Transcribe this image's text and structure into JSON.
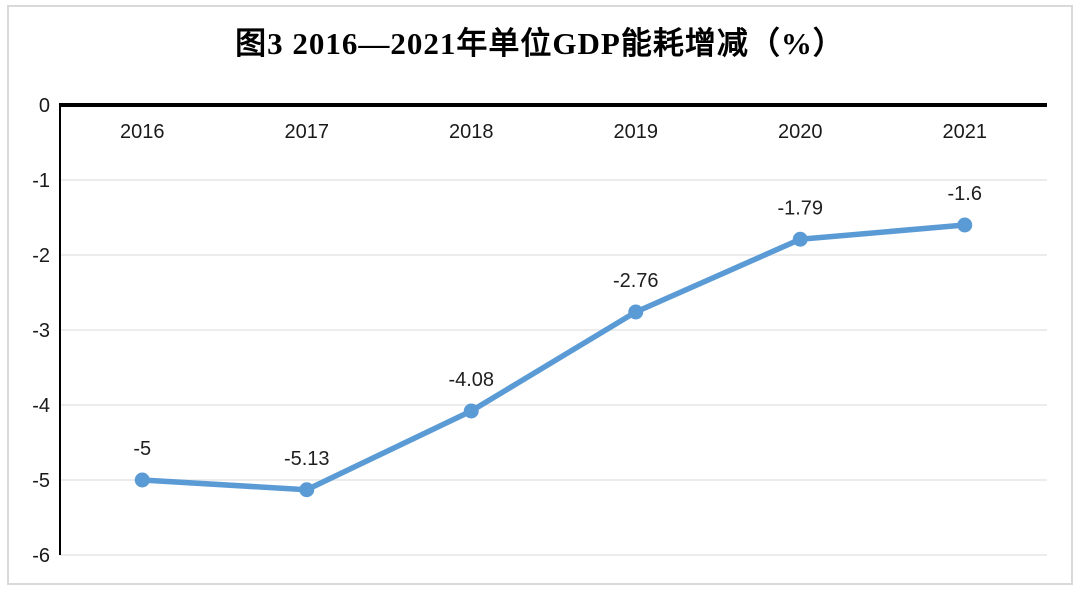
{
  "page": {
    "title": "图3 2016—2021年单位GDP能耗增减（%）"
  },
  "chart_data": {
    "type": "line",
    "title": "图3 2016—2021年单位GDP能耗增减（%）",
    "categories": [
      "2016",
      "2017",
      "2018",
      "2019",
      "2020",
      "2021"
    ],
    "series": [
      {
        "name": "单位GDP能耗增减",
        "values": [
          -5,
          -5.13,
          -4.08,
          -2.76,
          -1.79,
          -1.6
        ]
      }
    ],
    "data_labels": [
      "-5",
      "-5.13",
      "-4.08",
      "-2.76",
      "-1.79",
      "-1.6"
    ],
    "y_ticks": [
      0,
      -1,
      -2,
      -3,
      -4,
      -5,
      -6
    ],
    "y_tick_labels": [
      "0",
      "-1",
      "-2",
      "-3",
      "-4",
      "-5",
      "-6"
    ],
    "ylim": [
      -6,
      0
    ],
    "xlabel": "",
    "ylabel": "",
    "grid": true,
    "legend": "none",
    "colors": {
      "line": "#5B9BD5",
      "marker": "#5B9BD5",
      "gridline": "#ECECEC",
      "axis": "#000000",
      "tick_label": "#1a1a1a",
      "data_label": "#1f1f1f",
      "frame_border": "#D9D9D9",
      "background": "#FFFFFF"
    }
  }
}
